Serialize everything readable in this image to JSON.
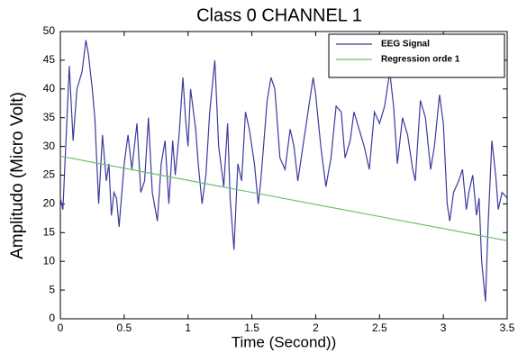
{
  "chart_data": {
    "type": "line",
    "title": "Class 0 CHANNEL 1",
    "x_label": "Time (Second))",
    "y_label": "Amplitudo (Micro Volt)",
    "xlim": [
      0,
      3.5
    ],
    "xticks": [
      0,
      0.5,
      1,
      1.5,
      2,
      2.5,
      3,
      3.5
    ],
    "ylim": [
      0,
      50
    ],
    "yticks": [
      0,
      5,
      10,
      15,
      20,
      25,
      30,
      35,
      40,
      45,
      50
    ],
    "grid": false,
    "legend": "upper right",
    "series": [
      {
        "name": "EEG Signal",
        "color": "#3b3b9e",
        "x": [
          0,
          0.02,
          0.07,
          0.1,
          0.13,
          0.17,
          0.2,
          0.22,
          0.25,
          0.27,
          0.3,
          0.33,
          0.36,
          0.38,
          0.4,
          0.42,
          0.44,
          0.46,
          0.5,
          0.53,
          0.56,
          0.6,
          0.63,
          0.66,
          0.69,
          0.72,
          0.76,
          0.79,
          0.82,
          0.85,
          0.88,
          0.9,
          0.93,
          0.96,
          0.98,
          1.0,
          1.02,
          1.06,
          1.08,
          1.11,
          1.14,
          1.17,
          1.21,
          1.24,
          1.28,
          1.31,
          1.33,
          1.36,
          1.39,
          1.42,
          1.45,
          1.48,
          1.52,
          1.55,
          1.57,
          1.62,
          1.65,
          1.68,
          1.72,
          1.76,
          1.8,
          1.83,
          1.86,
          1.9,
          1.94,
          1.98,
          2.0,
          2.04,
          2.08,
          2.12,
          2.16,
          2.2,
          2.23,
          2.27,
          2.3,
          2.34,
          2.38,
          2.42,
          2.46,
          2.5,
          2.54,
          2.58,
          2.61,
          2.64,
          2.68,
          2.72,
          2.76,
          2.78,
          2.82,
          2.86,
          2.9,
          2.93,
          2.97,
          3.0,
          3.03,
          3.05,
          3.08,
          3.12,
          3.15,
          3.18,
          3.2,
          3.23,
          3.26,
          3.28,
          3.3,
          3.33,
          3.35,
          3.38,
          3.41,
          3.43,
          3.46,
          3.5
        ],
        "values": [
          21,
          19,
          44,
          31,
          40,
          43,
          48.5,
          46,
          40,
          35,
          20,
          32,
          24,
          27,
          18,
          22,
          21,
          16,
          27,
          32,
          26,
          34,
          22,
          24,
          35,
          22,
          17,
          27,
          31,
          20,
          31,
          25,
          32,
          42,
          35,
          30,
          40,
          33,
          27,
          20,
          25,
          36,
          45,
          30,
          23,
          34,
          21,
          12,
          27,
          24,
          36,
          33,
          27,
          20,
          24,
          38,
          42,
          40,
          28,
          26,
          33,
          30,
          24,
          30,
          36,
          42,
          39,
          30,
          23,
          28,
          37,
          36,
          28,
          31,
          36,
          33,
          30,
          26,
          36,
          34,
          37,
          43,
          37,
          27,
          35,
          32,
          26,
          24,
          38,
          35,
          26,
          30,
          39,
          34,
          20,
          17,
          22,
          24,
          26,
          19,
          22,
          25,
          18,
          21,
          10,
          3,
          16,
          31,
          25,
          19,
          22,
          21
        ]
      },
      {
        "name": "Regression orde 1",
        "color": "#6cc06c",
        "x": [
          0,
          3.5
        ],
        "values": [
          28.3,
          13.6
        ]
      }
    ]
  }
}
